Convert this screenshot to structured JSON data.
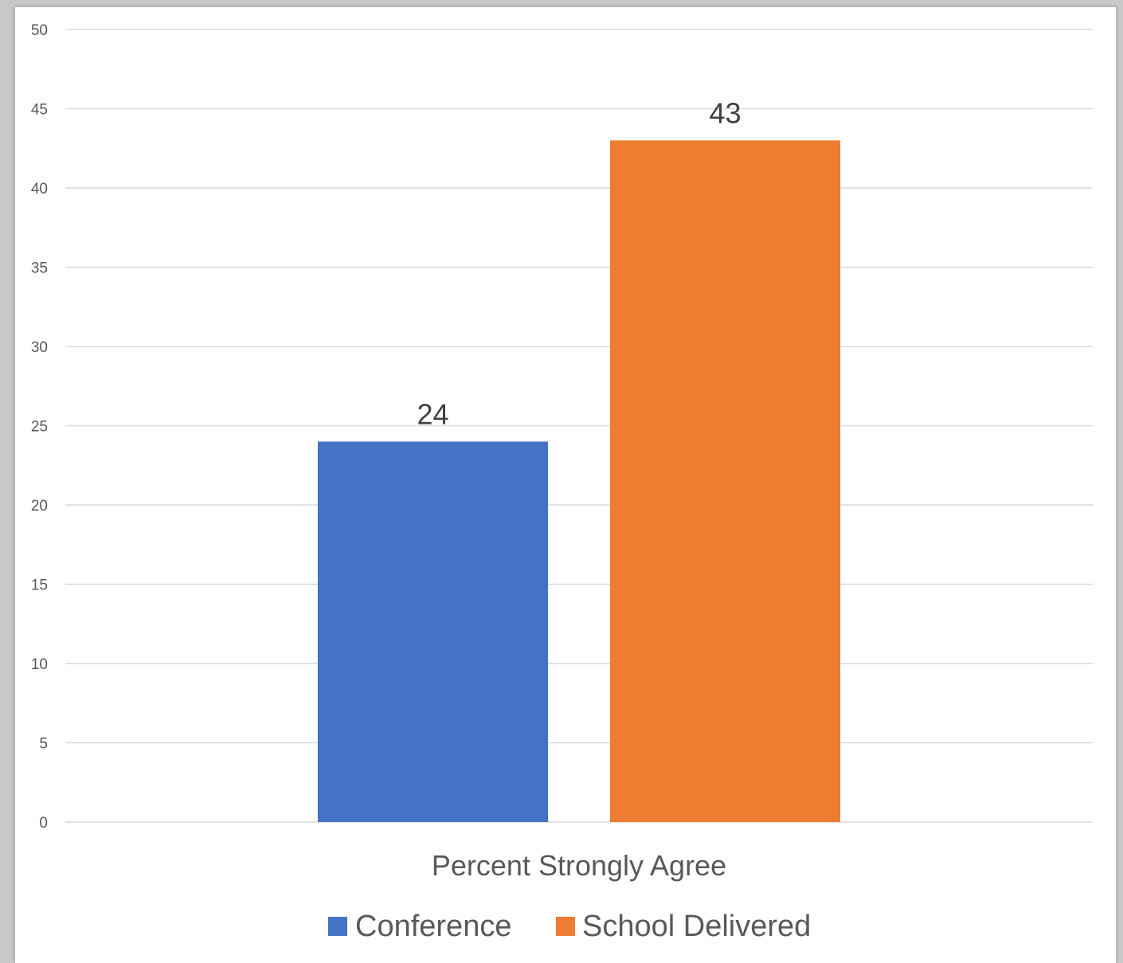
{
  "chart_data": {
    "type": "bar",
    "title": "",
    "xlabel": "",
    "ylabel": "",
    "categories": [
      "Percent Strongly Agree"
    ],
    "series": [
      {
        "name": "Conference",
        "values": [
          24
        ],
        "color": "#4472c4"
      },
      {
        "name": "School Delivered",
        "values": [
          43
        ],
        "color": "#ed7d31"
      }
    ],
    "ylim": [
      0,
      50
    ],
    "y_ticks": [
      0,
      5,
      10,
      15,
      20,
      25,
      30,
      35,
      40,
      45,
      50
    ],
    "grid": true,
    "legend": "bottom",
    "data_labels": true
  }
}
